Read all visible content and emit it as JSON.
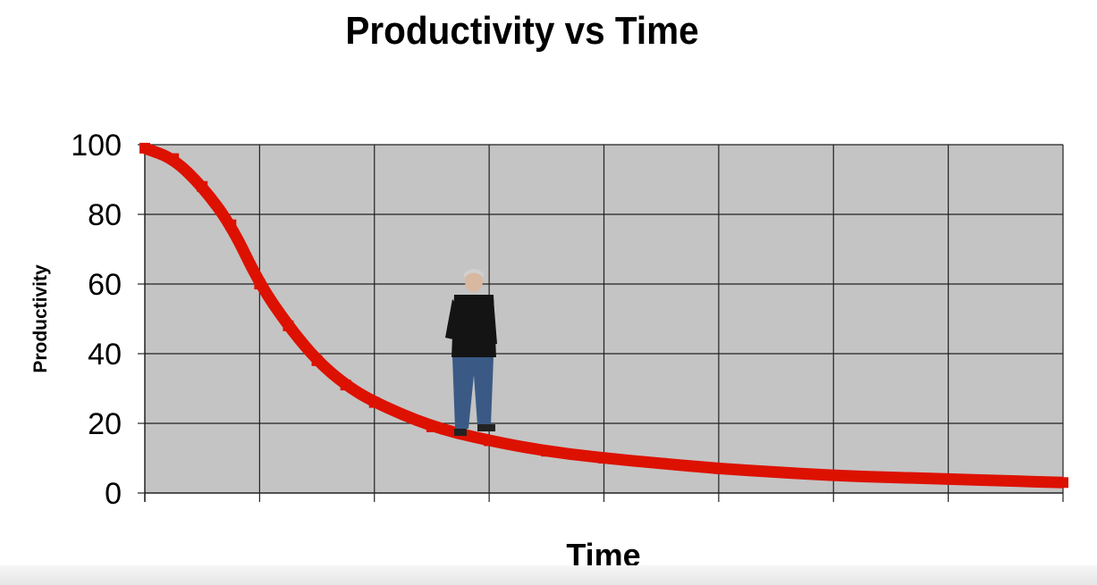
{
  "chart_data": {
    "type": "line",
    "title": "Productivity vs Time",
    "xlabel": "Time",
    "ylabel": "Productivity",
    "ylim": [
      0,
      100
    ],
    "yticks": [
      "0",
      "20",
      "40",
      "60",
      "80",
      "100"
    ],
    "xlim": [
      0,
      8
    ],
    "grid": true,
    "plot_background": "#c4c4c4",
    "series": [
      {
        "color": "#dd1100",
        "x": [
          0,
          0.25,
          0.5,
          0.75,
          1.0,
          1.25,
          1.5,
          1.75,
          2.0,
          2.5,
          3.0,
          3.5,
          4.0,
          4.5,
          5.0,
          5.5,
          6.0,
          6.5,
          7.0,
          7.5,
          8.0
        ],
        "y": [
          99,
          96,
          88,
          77,
          60,
          48,
          38,
          31,
          26,
          19,
          15,
          12,
          10,
          8.5,
          7,
          6,
          5,
          4.5,
          4,
          3.5,
          3
        ]
      }
    ]
  }
}
